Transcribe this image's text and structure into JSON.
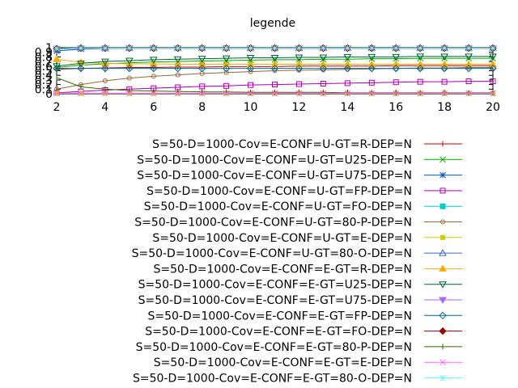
{
  "chart_data": {
    "type": "line",
    "title": "legende",
    "xlabel": "",
    "ylabel": "",
    "xlim": [
      2,
      20
    ],
    "ylim": [
      0,
      1
    ],
    "xticks": [
      "2",
      "4",
      "6",
      "8",
      "10",
      "12",
      "14",
      "16",
      "18",
      "20"
    ],
    "yticks": [
      "0",
      "0.1",
      "0.2",
      "0.3",
      "0.4",
      "0.5",
      "0.6",
      "0.7",
      "0.8",
      "0.9",
      "1"
    ],
    "grid": false,
    "legend_position": "below",
    "x": [
      2,
      3,
      4,
      5,
      6,
      7,
      8,
      9,
      10,
      11,
      12,
      13,
      14,
      15,
      16,
      17,
      18,
      19,
      20
    ],
    "series": [
      {
        "name": "S=50-D=1000-Cov=E-CONF=U-GT=R-DEP=N",
        "color": "#cc0000",
        "marker": "plus",
        "values": [
          0.53,
          0.55,
          0.56,
          0.57,
          0.57,
          0.58,
          0.58,
          0.59,
          0.59,
          0.59,
          0.6,
          0.6,
          0.6,
          0.6,
          0.61,
          0.61,
          0.61,
          0.61,
          0.61
        ]
      },
      {
        "name": "S=50-D=1000-Cov=E-CONF=U-GT=U25-DEP=N",
        "color": "#00aa00",
        "marker": "x",
        "values": [
          0.57,
          0.62,
          0.65,
          0.67,
          0.69,
          0.7,
          0.71,
          0.72,
          0.73,
          0.74,
          0.74,
          0.75,
          0.75,
          0.76,
          0.76,
          0.77,
          0.77,
          0.77,
          0.77
        ]
      },
      {
        "name": "S=50-D=1000-Cov=E-CONF=U-GT=U75-DEP=N",
        "color": "#0055cc",
        "marker": "star",
        "values": [
          0.93,
          0.97,
          0.98,
          0.99,
          0.99,
          0.99,
          0.99,
          0.99,
          0.99,
          0.99,
          0.99,
          0.99,
          0.99,
          0.99,
          0.99,
          0.99,
          0.99,
          0.99,
          0.99
        ]
      },
      {
        "name": "S=50-D=1000-Cov=E-CONF=U-GT=FP-DEP=N",
        "color": "#aa00aa",
        "marker": "square",
        "values": [
          0.02,
          0.05,
          0.08,
          0.1,
          0.12,
          0.14,
          0.16,
          0.17,
          0.19,
          0.2,
          0.21,
          0.22,
          0.23,
          0.24,
          0.25,
          0.26,
          0.26,
          0.27,
          0.27
        ]
      },
      {
        "name": "S=50-D=1000-Cov=E-CONF=U-GT=FO-DEP=N",
        "color": "#00cccc",
        "marker": "filled-square",
        "values": [
          0.97,
          0.99,
          0.99,
          0.99,
          0.99,
          0.99,
          0.99,
          0.99,
          0.99,
          0.99,
          0.99,
          0.99,
          0.99,
          0.99,
          0.99,
          0.99,
          0.99,
          0.99,
          0.99
        ]
      },
      {
        "name": "S=50-D=1000-Cov=E-CONF=U-GT=80-P-DEP=N",
        "color": "#996633",
        "marker": "circle",
        "values": [
          0.1,
          0.2,
          0.28,
          0.34,
          0.38,
          0.41,
          0.44,
          0.46,
          0.48,
          0.5,
          0.51,
          0.52,
          0.53,
          0.54,
          0.55,
          0.56,
          0.56,
          0.57,
          0.57
        ]
      },
      {
        "name": "S=50-D=1000-Cov=E-CONF=U-GT=E-DEP=N",
        "color": "#cccc00",
        "marker": "filled-square-small",
        "values": [
          0.01,
          0.01,
          0.01,
          0.01,
          0.01,
          0.01,
          0.01,
          0.01,
          0.01,
          0.01,
          0.01,
          0.01,
          0.01,
          0.01,
          0.01,
          0.01,
          0.01,
          0.01,
          0.01
        ]
      },
      {
        "name": "S=50-D=1000-Cov=E-CONF=U-GT=80-O-DEP=N",
        "color": "#3366cc",
        "marker": "triangle",
        "values": [
          0.97,
          0.99,
          0.99,
          0.99,
          0.99,
          0.99,
          0.99,
          0.99,
          0.99,
          0.99,
          0.99,
          0.99,
          0.99,
          0.99,
          0.99,
          0.99,
          0.99,
          0.99,
          0.99
        ]
      },
      {
        "name": "S=50-D=1000-Cov=E-CONF=E-GT=R-DEP=N",
        "color": "#ffaa00",
        "marker": "filled-triangle",
        "values": [
          0.75,
          0.68,
          0.66,
          0.65,
          0.65,
          0.64,
          0.64,
          0.64,
          0.64,
          0.64,
          0.64,
          0.64,
          0.64,
          0.64,
          0.64,
          0.64,
          0.64,
          0.64,
          0.64
        ]
      },
      {
        "name": "S=50-D=1000-Cov=E-CONF=E-GT=U25-DEP=N",
        "color": "#006633",
        "marker": "triangle-down",
        "values": [
          0.6,
          0.66,
          0.7,
          0.72,
          0.74,
          0.75,
          0.76,
          0.77,
          0.78,
          0.78,
          0.79,
          0.79,
          0.8,
          0.8,
          0.8,
          0.81,
          0.81,
          0.81,
          0.81
        ]
      },
      {
        "name": "S=50-D=1000-Cov=E-CONF=E-GT=U75-DEP=N",
        "color": "#aa66ff",
        "marker": "filled-triangle-down",
        "values": [
          0.98,
          0.99,
          0.99,
          0.99,
          0.99,
          0.99,
          0.99,
          0.99,
          0.99,
          0.99,
          0.99,
          0.99,
          0.99,
          0.99,
          0.99,
          0.99,
          0.99,
          0.99,
          0.99
        ]
      },
      {
        "name": "S=50-D=1000-Cov=E-CONF=E-GT=FP-DEP=N",
        "color": "#006699",
        "marker": "diamond",
        "values": [
          0.55,
          0.55,
          0.55,
          0.55,
          0.55,
          0.55,
          0.55,
          0.55,
          0.55,
          0.55,
          0.55,
          0.55,
          0.55,
          0.55,
          0.55,
          0.55,
          0.55,
          0.55,
          0.55
        ]
      },
      {
        "name": "S=50-D=1000-Cov=E-CONF=E-GT=FO-DEP=N",
        "color": "#990000",
        "marker": "filled-diamond",
        "values": [
          0.98,
          0.99,
          0.99,
          0.99,
          0.99,
          0.99,
          0.99,
          0.99,
          0.99,
          0.99,
          0.99,
          0.99,
          0.99,
          0.99,
          0.99,
          0.99,
          0.99,
          0.99,
          0.99
        ]
      },
      {
        "name": "S=50-D=1000-Cov=E-CONF=E-GT=80-P-DEP=N",
        "color": "#336600",
        "marker": "vline",
        "values": [
          0.35,
          0.15,
          0.1,
          0.07,
          0.06,
          0.05,
          0.04,
          0.04,
          0.03,
          0.03,
          0.03,
          0.03,
          0.02,
          0.02,
          0.02,
          0.02,
          0.02,
          0.02,
          0.02
        ]
      },
      {
        "name": "S=50-D=1000-Cov=E-CONF=E-GT=E-DEP=N",
        "color": "#ff66ff",
        "marker": "x",
        "values": [
          0.01,
          0.01,
          0.01,
          0.01,
          0.01,
          0.01,
          0.01,
          0.01,
          0.01,
          0.01,
          0.01,
          0.01,
          0.01,
          0.01,
          0.01,
          0.01,
          0.01,
          0.01,
          0.01
        ]
      },
      {
        "name": "S=50-D=1000-Cov=E-CONF=E-GT=80-O-DEP=N",
        "color": "#66ffff",
        "marker": "star",
        "values": [
          0.98,
          0.99,
          0.99,
          0.99,
          0.99,
          0.99,
          0.99,
          0.99,
          0.99,
          0.99,
          0.99,
          0.99,
          0.99,
          0.99,
          0.99,
          0.99,
          0.99,
          0.99,
          0.99
        ]
      }
    ]
  }
}
